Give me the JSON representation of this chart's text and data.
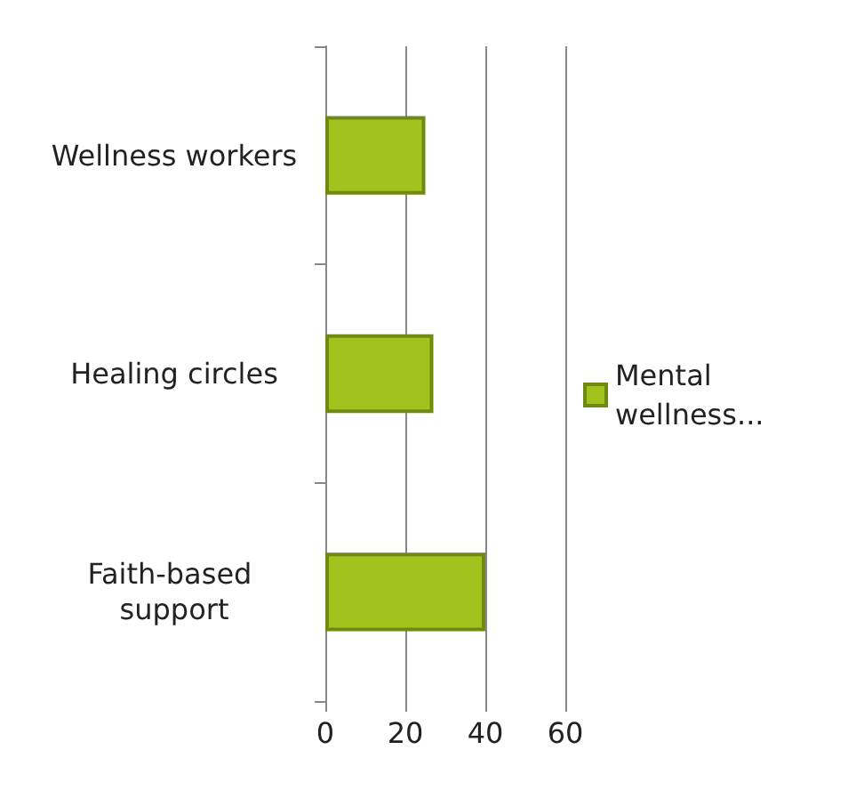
{
  "chart_data": {
    "type": "bar",
    "orientation": "horizontal",
    "categories": [
      "Wellness workers",
      "Healing circles",
      "Faith-based support"
    ],
    "series": [
      {
        "name": "Mental wellness...",
        "color": "#a2c21e",
        "values": [
          25,
          27,
          40
        ]
      }
    ],
    "xlim": [
      0,
      60
    ],
    "xticks": [
      0,
      20,
      40,
      60
    ],
    "grid": "x",
    "legend": "right"
  }
}
